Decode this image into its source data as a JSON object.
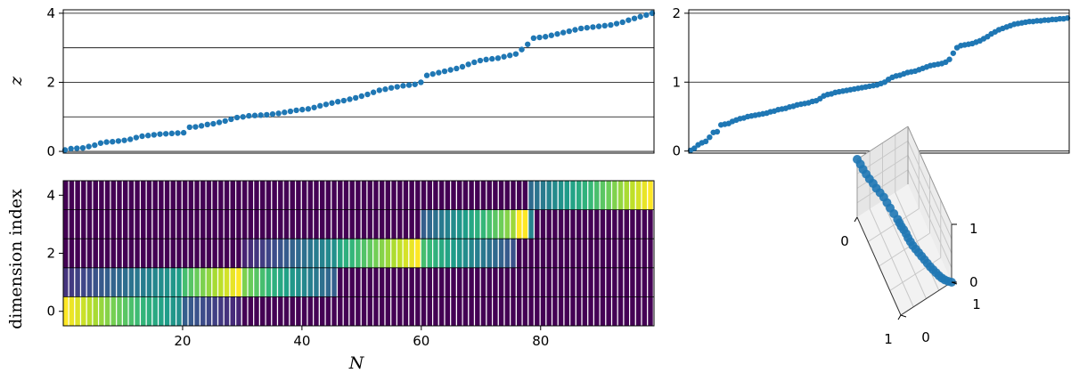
{
  "chart_data": [
    {
      "type": "scatter",
      "panel": "top-left",
      "ylabel": "z",
      "yticks": [
        0,
        2,
        4
      ],
      "ylim": [
        -0.05,
        4.1
      ],
      "xlim": [
        0,
        99
      ],
      "grid": "horizontal at 0, 1, 2, 3, 4",
      "color": "#1f77b4",
      "x": [
        0,
        1,
        2,
        3,
        4,
        5,
        6,
        7,
        8,
        9,
        10,
        11,
        12,
        13,
        14,
        15,
        16,
        17,
        18,
        19,
        20,
        21,
        22,
        23,
        24,
        25,
        26,
        27,
        28,
        29,
        30,
        31,
        32,
        33,
        34,
        35,
        36,
        37,
        38,
        39,
        40,
        41,
        42,
        43,
        44,
        45,
        46,
        47,
        48,
        49,
        50,
        51,
        52,
        53,
        54,
        55,
        56,
        57,
        58,
        59,
        60,
        61,
        62,
        63,
        64,
        65,
        66,
        67,
        68,
        69,
        70,
        71,
        72,
        73,
        74,
        75,
        76,
        77,
        78,
        79,
        80,
        81,
        82,
        83,
        84,
        85,
        86,
        87,
        88,
        89,
        90,
        91,
        92,
        93,
        94,
        95,
        96,
        97,
        98,
        99
      ],
      "y": [
        0.04,
        0.08,
        0.09,
        0.1,
        0.14,
        0.18,
        0.24,
        0.27,
        0.28,
        0.3,
        0.32,
        0.35,
        0.4,
        0.44,
        0.46,
        0.48,
        0.5,
        0.51,
        0.52,
        0.53,
        0.54,
        0.7,
        0.71,
        0.74,
        0.78,
        0.8,
        0.84,
        0.88,
        0.93,
        0.98,
        1.0,
        1.03,
        1.04,
        1.05,
        1.06,
        1.08,
        1.1,
        1.13,
        1.16,
        1.19,
        1.21,
        1.23,
        1.27,
        1.32,
        1.36,
        1.4,
        1.44,
        1.47,
        1.51,
        1.55,
        1.6,
        1.65,
        1.71,
        1.77,
        1.8,
        1.84,
        1.87,
        1.9,
        1.92,
        1.94,
        2.0,
        2.2,
        2.24,
        2.28,
        2.32,
        2.36,
        2.4,
        2.45,
        2.52,
        2.58,
        2.63,
        2.66,
        2.68,
        2.7,
        2.74,
        2.78,
        2.82,
        2.95,
        3.1,
        3.28,
        3.3,
        3.32,
        3.36,
        3.4,
        3.44,
        3.48,
        3.52,
        3.56,
        3.58,
        3.6,
        3.62,
        3.64,
        3.66,
        3.7,
        3.74,
        3.8,
        3.85,
        3.9,
        3.95,
        4.0
      ]
    },
    {
      "type": "scatter",
      "panel": "top-right",
      "yticks": [
        0,
        1,
        2
      ],
      "ylim": [
        -0.03,
        2.05
      ],
      "xlim": [
        0,
        99
      ],
      "grid": "horizontal at 0, 1, 2",
      "color": "#1f77b4",
      "x": [
        0,
        1,
        2,
        3,
        4,
        5,
        6,
        7,
        8,
        9,
        10,
        11,
        12,
        13,
        14,
        15,
        16,
        17,
        18,
        19,
        20,
        21,
        22,
        23,
        24,
        25,
        26,
        27,
        28,
        29,
        30,
        31,
        32,
        33,
        34,
        35,
        36,
        37,
        38,
        39,
        40,
        41,
        42,
        43,
        44,
        45,
        46,
        47,
        48,
        49,
        50,
        51,
        52,
        53,
        54,
        55,
        56,
        57,
        58,
        59,
        60,
        61,
        62,
        63,
        64,
        65,
        66,
        67,
        68,
        69,
        70,
        71,
        72,
        73,
        74,
        75,
        76,
        77,
        78,
        79,
        80,
        81,
        82,
        83,
        84,
        85,
        86,
        87,
        88,
        89,
        90,
        91,
        92,
        93,
        94,
        95,
        96,
        97,
        98,
        99
      ],
      "y": [
        0.01,
        0.04,
        0.09,
        0.12,
        0.14,
        0.2,
        0.27,
        0.28,
        0.38,
        0.39,
        0.4,
        0.43,
        0.45,
        0.47,
        0.48,
        0.5,
        0.51,
        0.52,
        0.53,
        0.54,
        0.55,
        0.57,
        0.58,
        0.6,
        0.61,
        0.62,
        0.64,
        0.65,
        0.67,
        0.68,
        0.69,
        0.7,
        0.72,
        0.73,
        0.76,
        0.8,
        0.82,
        0.83,
        0.85,
        0.86,
        0.87,
        0.88,
        0.89,
        0.9,
        0.91,
        0.92,
        0.93,
        0.94,
        0.95,
        0.96,
        0.98,
        1.0,
        1.04,
        1.07,
        1.09,
        1.1,
        1.12,
        1.14,
        1.15,
        1.16,
        1.18,
        1.2,
        1.22,
        1.24,
        1.25,
        1.26,
        1.27,
        1.29,
        1.33,
        1.42,
        1.5,
        1.53,
        1.54,
        1.55,
        1.56,
        1.58,
        1.6,
        1.63,
        1.66,
        1.7,
        1.73,
        1.76,
        1.78,
        1.8,
        1.82,
        1.84,
        1.85,
        1.86,
        1.87,
        1.88,
        1.88,
        1.89,
        1.89,
        1.9,
        1.9,
        1.91,
        1.91,
        1.92,
        1.92,
        1.93
      ]
    },
    {
      "type": "heatmap",
      "panel": "bottom-left",
      "xlabel": "N",
      "ylabel": "dimension index",
      "xticks": [
        20,
        40,
        60,
        80
      ],
      "yticks": [
        0,
        2,
        4
      ],
      "xlim": [
        0,
        99
      ],
      "rows": 5,
      "colormap": "viridis",
      "segments": [
        {
          "row": 0,
          "start": 0,
          "end": 20,
          "from": 1.0,
          "to": 0.5
        },
        {
          "row": 0,
          "start": 20,
          "end": 30,
          "from": 0.3,
          "to": 0.1
        },
        {
          "row": 1,
          "start": 0,
          "end": 20,
          "from": 0.15,
          "to": 0.55
        },
        {
          "row": 1,
          "start": 20,
          "end": 30,
          "from": 0.7,
          "to": 1.0
        },
        {
          "row": 1,
          "start": 30,
          "end": 46,
          "from": 0.8,
          "to": 0.3
        },
        {
          "row": 2,
          "start": 30,
          "end": 46,
          "from": 0.1,
          "to": 0.5
        },
        {
          "row": 2,
          "start": 46,
          "end": 60,
          "from": 0.6,
          "to": 1.0
        },
        {
          "row": 2,
          "start": 60,
          "end": 76,
          "from": 0.7,
          "to": 0.25
        },
        {
          "row": 3,
          "start": 60,
          "end": 76,
          "from": 0.3,
          "to": 0.85
        },
        {
          "row": 3,
          "start": 76,
          "end": 78,
          "from": 1.0,
          "to": 1.0
        },
        {
          "row": 3,
          "start": 78,
          "end": 79,
          "from": 0.45,
          "to": 0.45
        },
        {
          "row": 4,
          "start": 78,
          "end": 99,
          "from": 0.35,
          "to": 1.0
        }
      ]
    },
    {
      "type": "scatter3d",
      "panel": "bottom-right",
      "xticks": [
        0,
        1
      ],
      "yticks": [
        0,
        1
      ],
      "zticks": [
        0,
        1
      ],
      "color": "#1f77b4",
      "points": [
        [
          0.0,
          0.0,
          1.0
        ],
        [
          0.05,
          0.02,
          0.99
        ],
        [
          0.1,
          0.03,
          0.98
        ],
        [
          0.15,
          0.05,
          0.97
        ],
        [
          0.2,
          0.07,
          0.96
        ],
        [
          0.25,
          0.1,
          0.95
        ],
        [
          0.3,
          0.12,
          0.94
        ],
        [
          0.35,
          0.15,
          0.93
        ],
        [
          0.4,
          0.18,
          0.92
        ],
        [
          0.45,
          0.2,
          0.9
        ],
        [
          0.5,
          0.22,
          0.88
        ],
        [
          0.55,
          0.25,
          0.85
        ],
        [
          0.6,
          0.28,
          0.82
        ],
        [
          0.62,
          0.3,
          0.78
        ],
        [
          0.64,
          0.32,
          0.74
        ],
        [
          0.66,
          0.35,
          0.7
        ],
        [
          0.68,
          0.38,
          0.65
        ],
        [
          0.7,
          0.4,
          0.6
        ],
        [
          0.72,
          0.43,
          0.55
        ],
        [
          0.74,
          0.46,
          0.5
        ],
        [
          0.76,
          0.5,
          0.45
        ],
        [
          0.78,
          0.54,
          0.4
        ],
        [
          0.8,
          0.58,
          0.35
        ],
        [
          0.82,
          0.62,
          0.3
        ],
        [
          0.84,
          0.66,
          0.25
        ],
        [
          0.86,
          0.7,
          0.2
        ],
        [
          0.88,
          0.74,
          0.16
        ],
        [
          0.9,
          0.78,
          0.12
        ],
        [
          0.92,
          0.82,
          0.08
        ],
        [
          0.94,
          0.86,
          0.05
        ],
        [
          0.96,
          0.9,
          0.03
        ],
        [
          0.98,
          0.95,
          0.01
        ],
        [
          1.0,
          1.0,
          0.0
        ]
      ]
    }
  ]
}
